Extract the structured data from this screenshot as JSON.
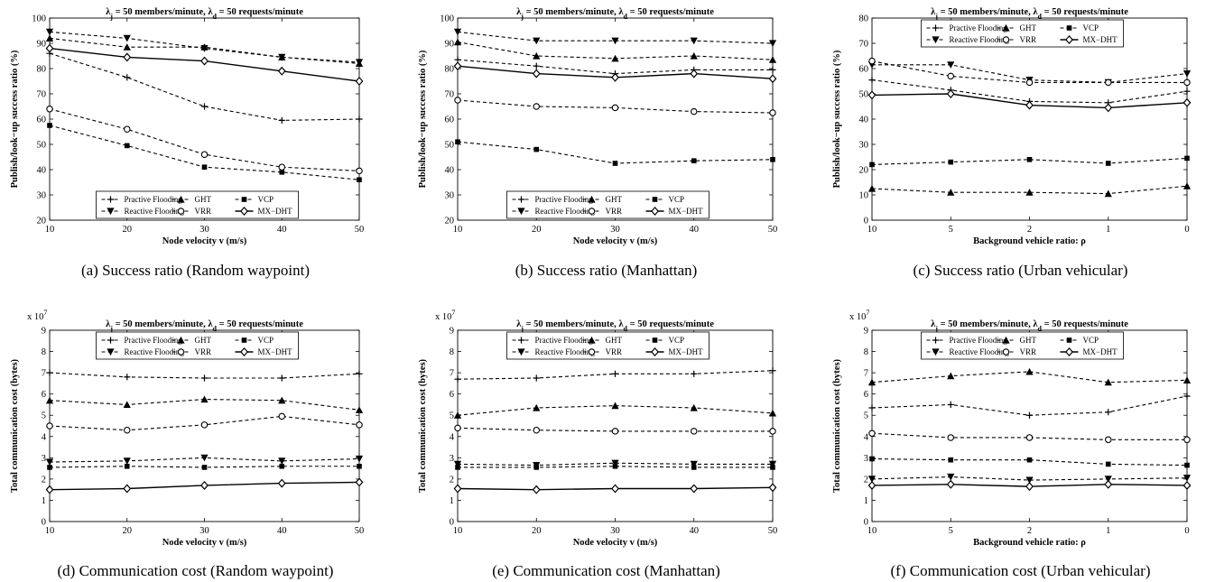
{
  "figure": {
    "series_names": [
      "Practive Flooding",
      "GHT",
      "VCP",
      "Reactive Flooding",
      "VRR",
      "MX−DHT"
    ],
    "series_markers": [
      "plus",
      "triangle-up",
      "square",
      "triangle-down",
      "circle",
      "diamond"
    ]
  },
  "chart_data": [
    {
      "id": "a",
      "type": "line",
      "title_pre": "λ",
      "title_sub1": "j",
      "title_mid": " = 50 members/minute, λ",
      "title_sub2": "d",
      "title_post": " = 50 requests/minute",
      "caption": "(a) Success ratio (Random waypoint)",
      "xlabel": "Node velocity v (m/s)",
      "ylabel": "Publish/look−up success ratio (%)",
      "yexponent": "",
      "x": [
        "10",
        "20",
        "30",
        "40",
        "50"
      ],
      "ylim": [
        20,
        100
      ],
      "yticks": [
        20,
        30,
        40,
        50,
        60,
        70,
        80,
        90,
        100
      ],
      "legend_position": "bottom-center",
      "series": [
        {
          "name": "Practive Flooding",
          "values": [
            86,
            76.5,
            65,
            59.5,
            60
          ]
        },
        {
          "name": "GHT",
          "values": [
            92,
            88.5,
            88.5,
            84.5,
            82
          ]
        },
        {
          "name": "VCP",
          "values": [
            57.5,
            49.5,
            41,
            39,
            36
          ]
        },
        {
          "name": "Reactive Flooding",
          "values": [
            94.5,
            92,
            88,
            84.5,
            82.5
          ]
        },
        {
          "name": "VRR",
          "values": [
            64,
            56,
            46,
            41,
            39.5
          ]
        },
        {
          "name": "MX−DHT",
          "values": [
            88,
            84.5,
            83,
            79,
            75
          ]
        }
      ]
    },
    {
      "id": "b",
      "type": "line",
      "title_pre": "λ",
      "title_sub1": "j",
      "title_mid": " = 50 members/minute, λ",
      "title_sub2": "d",
      "title_post": " = 50 requests/minute",
      "caption": "(b) Success ratio (Manhattan)",
      "xlabel": "Node velocity v (m/s)",
      "ylabel": "Publish/look−up success ratio (%)",
      "yexponent": "",
      "x": [
        "10",
        "20",
        "30",
        "40",
        "50"
      ],
      "ylim": [
        20,
        100
      ],
      "yticks": [
        20,
        30,
        40,
        50,
        60,
        70,
        80,
        90,
        100
      ],
      "legend_position": "bottom-center",
      "series": [
        {
          "name": "Practive Flooding",
          "values": [
            83.5,
            81,
            78,
            79.5,
            79.5
          ]
        },
        {
          "name": "GHT",
          "values": [
            90.5,
            85,
            84,
            85,
            83.5
          ]
        },
        {
          "name": "VCP",
          "values": [
            51,
            48,
            42.5,
            43.5,
            44
          ]
        },
        {
          "name": "Reactive Flooding",
          "values": [
            94.5,
            91,
            91,
            91,
            90
          ]
        },
        {
          "name": "VRR",
          "values": [
            67.5,
            65,
            64.5,
            63,
            62.5
          ]
        },
        {
          "name": "MX−DHT",
          "values": [
            81,
            78,
            76.5,
            78,
            76
          ]
        }
      ]
    },
    {
      "id": "c",
      "type": "line",
      "title_pre": "λ",
      "title_sub1": "j",
      "title_mid": " = 50 members/minute, λ",
      "title_sub2": "d",
      "title_post": " = 50 requests/minute",
      "caption": "(c) Success ratio (Urban vehicular)",
      "xlabel": "Background vehicle ratio: ρ",
      "ylabel": "Publish/look−up success ratio (%)",
      "yexponent": "",
      "x": [
        "10",
        "5",
        "2",
        "1",
        "0"
      ],
      "ylim": [
        0,
        80
      ],
      "yticks": [
        0,
        10,
        20,
        30,
        40,
        50,
        60,
        70,
        80
      ],
      "legend_position": "top-center",
      "series": [
        {
          "name": "Practive Flooding",
          "values": [
            55.5,
            51.5,
            47,
            46.5,
            51
          ]
        },
        {
          "name": "GHT",
          "values": [
            12.5,
            11,
            11,
            10.5,
            13.5
          ]
        },
        {
          "name": "VCP",
          "values": [
            22,
            23,
            24,
            22.5,
            24.5
          ]
        },
        {
          "name": "Reactive Flooding",
          "values": [
            61.5,
            61.5,
            55.5,
            54.5,
            58
          ]
        },
        {
          "name": "VRR",
          "values": [
            63,
            57,
            54.5,
            54.5,
            54.5
          ]
        },
        {
          "name": "MX−DHT",
          "values": [
            49.5,
            50,
            45.5,
            44.5,
            46.5
          ]
        }
      ]
    },
    {
      "id": "d",
      "type": "line",
      "title_pre": "λ",
      "title_sub1": "j",
      "title_mid": " = 50 members/minute, λ",
      "title_sub2": "d",
      "title_post": " = 50 requests/minute",
      "caption": "(d) Communication cost (Random waypoint)",
      "xlabel": "Node velocity v (m/s)",
      "ylabel": "Total communication cost (bytes)",
      "yexponent": "x 10",
      "yexponent_power": "7",
      "x": [
        "10",
        "20",
        "30",
        "40",
        "50"
      ],
      "ylim": [
        0,
        9
      ],
      "yticks": [
        0,
        1,
        2,
        3,
        4,
        5,
        6,
        7,
        8,
        9
      ],
      "legend_position": "top-center",
      "series": [
        {
          "name": "Practive Flooding",
          "values": [
            7.0,
            6.8,
            6.75,
            6.75,
            6.95
          ]
        },
        {
          "name": "GHT",
          "values": [
            5.7,
            5.5,
            5.75,
            5.7,
            5.25
          ]
        },
        {
          "name": "VCP",
          "values": [
            2.55,
            2.6,
            2.55,
            2.6,
            2.6
          ]
        },
        {
          "name": "Reactive Flooding",
          "values": [
            2.8,
            2.85,
            3.0,
            2.85,
            2.95
          ]
        },
        {
          "name": "VRR",
          "values": [
            4.5,
            4.3,
            4.55,
            4.95,
            4.55
          ]
        },
        {
          "name": "MX−DHT",
          "values": [
            1.5,
            1.55,
            1.7,
            1.8,
            1.85
          ]
        }
      ]
    },
    {
      "id": "e",
      "type": "line",
      "title_pre": "λ",
      "title_sub1": "j",
      "title_mid": " = 50 members/minute, λ",
      "title_sub2": "d",
      "title_post": " = 50 requests/minute",
      "caption": "(e) Communication cost (Manhattan)",
      "xlabel": "Node velocity v (m/s)",
      "ylabel": "Total communication cost (bytes)",
      "yexponent": "x 10",
      "yexponent_power": "7",
      "x": [
        "10",
        "20",
        "30",
        "40",
        "50"
      ],
      "ylim": [
        0,
        9
      ],
      "yticks": [
        0,
        1,
        2,
        3,
        4,
        5,
        6,
        7,
        8,
        9
      ],
      "legend_position": "top-center",
      "series": [
        {
          "name": "Practive Flooding",
          "values": [
            6.7,
            6.75,
            6.95,
            6.95,
            7.1
          ]
        },
        {
          "name": "GHT",
          "values": [
            5.0,
            5.35,
            5.45,
            5.35,
            5.1
          ]
        },
        {
          "name": "VCP",
          "values": [
            2.55,
            2.55,
            2.6,
            2.55,
            2.55
          ]
        },
        {
          "name": "Reactive Flooding",
          "values": [
            2.7,
            2.65,
            2.75,
            2.7,
            2.7
          ]
        },
        {
          "name": "VRR",
          "values": [
            4.4,
            4.3,
            4.25,
            4.25,
            4.25
          ]
        },
        {
          "name": "MX−DHT",
          "values": [
            1.55,
            1.5,
            1.55,
            1.55,
            1.6
          ]
        }
      ]
    },
    {
      "id": "f",
      "type": "line",
      "title_pre": "λ",
      "title_sub1": "j",
      "title_mid": " = 50 members/minute, λ",
      "title_sub2": "d",
      "title_post": " = 50 requests/minute",
      "caption": "(f) Communication cost (Urban vehicular)",
      "xlabel": "Background vehicle ratio: ρ",
      "ylabel": "Total communication cost (bytes)",
      "yexponent": "x 10",
      "yexponent_power": "7",
      "x": [
        "10",
        "5",
        "2",
        "1",
        "0"
      ],
      "ylim": [
        0,
        9
      ],
      "yticks": [
        0,
        1,
        2,
        3,
        4,
        5,
        6,
        7,
        8,
        9
      ],
      "legend_position": "top-center",
      "series": [
        {
          "name": "Practive Flooding",
          "values": [
            5.35,
            5.5,
            5.0,
            5.15,
            5.9
          ]
        },
        {
          "name": "GHT",
          "values": [
            6.55,
            6.85,
            7.05,
            6.55,
            6.65
          ]
        },
        {
          "name": "VCP",
          "values": [
            2.95,
            2.9,
            2.9,
            2.7,
            2.65
          ]
        },
        {
          "name": "Reactive Flooding",
          "values": [
            2.0,
            2.1,
            1.95,
            2.0,
            2.05
          ]
        },
        {
          "name": "VRR",
          "values": [
            4.15,
            3.95,
            3.95,
            3.85,
            3.85
          ]
        },
        {
          "name": "MX−DHT",
          "values": [
            1.7,
            1.75,
            1.65,
            1.75,
            1.7
          ]
        }
      ]
    }
  ]
}
